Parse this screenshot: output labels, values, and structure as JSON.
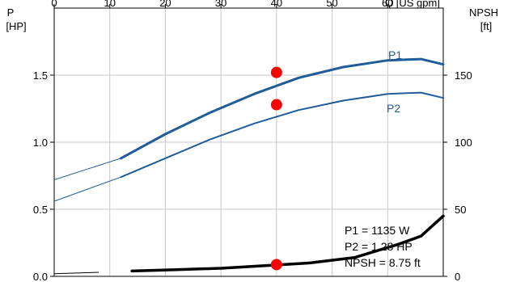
{
  "chart_data": {
    "type": "line",
    "left_axis": {
      "label_line1": "P",
      "label_line2": "[HP]",
      "ticks": [
        "0.0",
        "0.5",
        "1.0",
        "1.5"
      ],
      "range": [
        0,
        2.0
      ]
    },
    "right_axis": {
      "label_line1": "NPSH",
      "label_line2": "[ft]",
      "ticks": [
        "0",
        "50",
        "100",
        "150"
      ],
      "range": [
        0,
        200
      ]
    },
    "top_axis": {
      "label": "Q [US gpm]",
      "ticks": [
        "0",
        "10",
        "20",
        "30",
        "40",
        "50",
        "60"
      ],
      "range": [
        0,
        70
      ]
    },
    "grid": true,
    "colors": {
      "p1": "#1f5c99",
      "p2": "#1f5c99",
      "npsh": "#000000",
      "marker": "#ff0000"
    },
    "series": [
      {
        "name": "P1",
        "axis": "left",
        "color": "#1f5c99",
        "x": [
          0,
          6,
          12,
          20,
          28,
          36,
          44,
          52,
          60,
          66,
          70
        ],
        "y": [
          0.72,
          0.8,
          0.88,
          1.06,
          1.22,
          1.36,
          1.48,
          1.56,
          1.61,
          1.62,
          1.58
        ]
      },
      {
        "name": "P2",
        "axis": "left",
        "color": "#1f5c99",
        "x": [
          0,
          6,
          12,
          20,
          28,
          36,
          44,
          52,
          60,
          66,
          70
        ],
        "y": [
          0.56,
          0.65,
          0.74,
          0.88,
          1.02,
          1.14,
          1.24,
          1.31,
          1.36,
          1.37,
          1.33
        ]
      },
      {
        "name": "NPSH",
        "axis": "right",
        "color": "#000000",
        "x": [
          0,
          8,
          14,
          22,
          30,
          38,
          46,
          54,
          62,
          66,
          70
        ],
        "y": [
          2,
          3,
          4,
          5,
          6,
          8,
          10,
          14,
          24,
          30,
          45
        ]
      }
    ],
    "operating_point": {
      "x": 40,
      "p1": 1.52,
      "p2": 1.28,
      "npsh": 8.75
    },
    "annotation": [
      "P1 = 1135 W",
      "P2 = 1.28 HP",
      "NPSH = 8.75 ft"
    ]
  }
}
